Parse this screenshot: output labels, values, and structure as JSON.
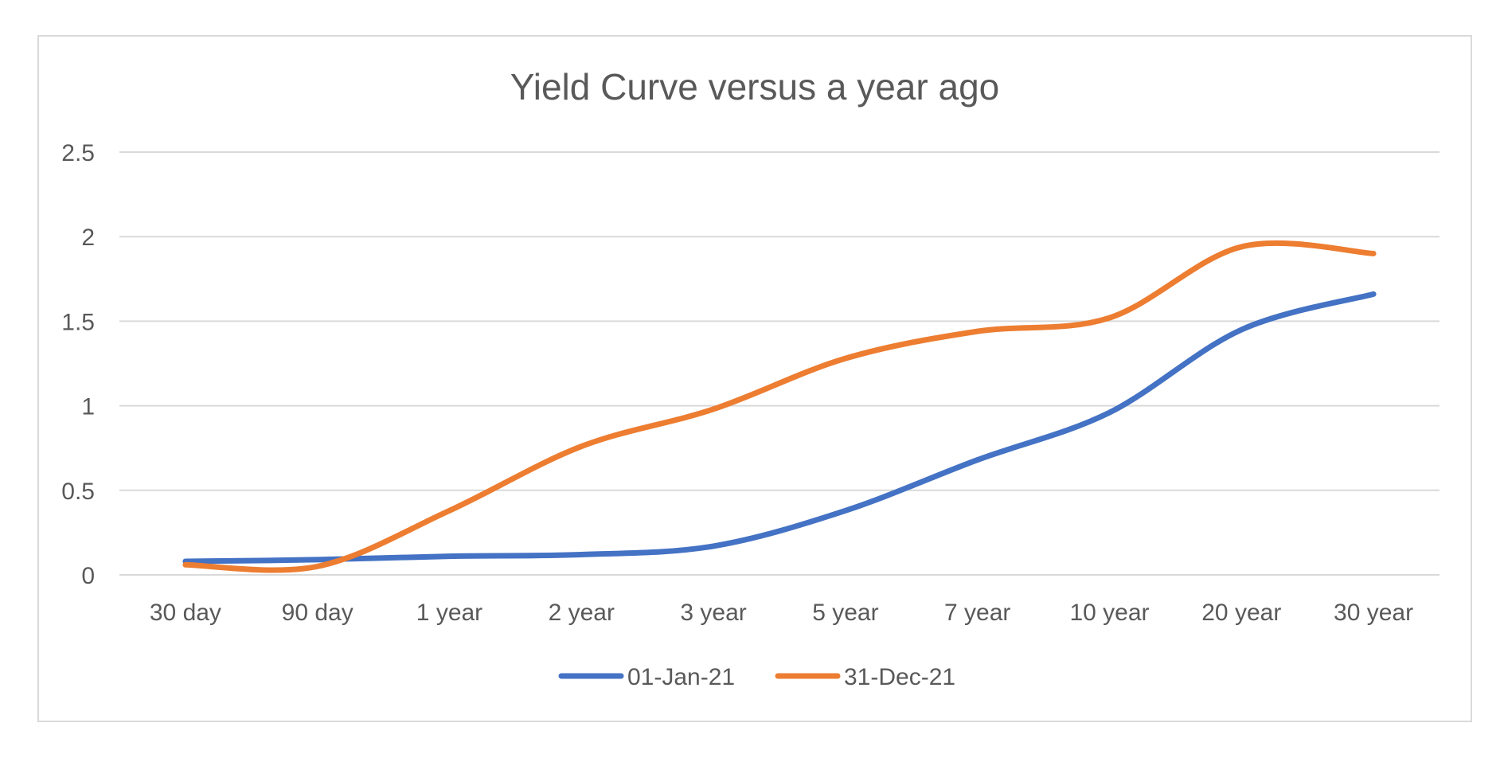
{
  "chart_data": {
    "type": "line",
    "title": "Yield Curve versus a year ago",
    "categories": [
      "30 day",
      "90 day",
      "1 year",
      "2 year",
      "3 year",
      "5 year",
      "7 year",
      "10 year",
      "20 year",
      "30 year"
    ],
    "series": [
      {
        "name": "01-Jan-21",
        "color": "#4472c4",
        "values": [
          0.08,
          0.09,
          0.11,
          0.12,
          0.17,
          0.38,
          0.68,
          0.96,
          1.45,
          1.66
        ]
      },
      {
        "name": "31-Dec-21",
        "color": "#ed7d31",
        "values": [
          0.06,
          0.05,
          0.38,
          0.76,
          0.98,
          1.28,
          1.44,
          1.52,
          1.94,
          1.9
        ]
      }
    ],
    "yticks": [
      "0",
      "0.5",
      "1",
      "1.5",
      "2",
      "2.5"
    ],
    "ylim": [
      0,
      2.5
    ],
    "smooth": true,
    "grid": true,
    "legend_position": "bottom"
  }
}
